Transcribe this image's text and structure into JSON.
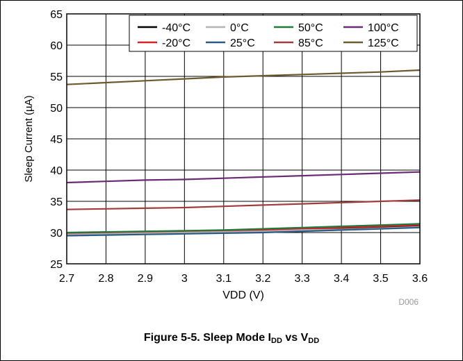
{
  "caption": {
    "prefix": "Figure 5-5. Sleep Mode I",
    "sub1": "DD",
    "middle": " vs V",
    "sub2": "DD"
  },
  "chart_data": {
    "type": "line",
    "xlabel": "VDD (V)",
    "ylabel": "Sleep Current (µA)",
    "xlim": [
      2.7,
      3.6
    ],
    "ylim": [
      25,
      65
    ],
    "xticks": [
      "2.7",
      "2.8",
      "2.9",
      "3",
      "3.1",
      "3.2",
      "3.3",
      "3.4",
      "3.5",
      "3.6"
    ],
    "yticks": [
      "25",
      "30",
      "35",
      "40",
      "45",
      "50",
      "55",
      "60",
      "65"
    ],
    "grid": true,
    "legend_position": "top-right",
    "watermark": "D006",
    "x": [
      2.7,
      2.8,
      2.9,
      3.0,
      3.1,
      3.2,
      3.3,
      3.4,
      3.5,
      3.6
    ],
    "series": [
      {
        "name": "-40°C",
        "color": "#000000",
        "values": [
          29.8,
          29.9,
          30.0,
          30.1,
          30.2,
          30.4,
          30.5,
          30.7,
          30.9,
          31.1
        ]
      },
      {
        "name": "-20°C",
        "color": "#d42027",
        "values": [
          29.8,
          29.9,
          30.0,
          30.1,
          30.2,
          30.4,
          30.6,
          30.8,
          31.0,
          31.2
        ]
      },
      {
        "name": "0°C",
        "color": "#b3b3b3",
        "values": [
          29.7,
          29.8,
          29.9,
          30.0,
          30.1,
          30.2,
          30.4,
          30.5,
          30.7,
          30.9
        ]
      },
      {
        "name": "25°C",
        "color": "#2a5b84",
        "values": [
          29.5,
          29.6,
          29.7,
          29.8,
          29.9,
          30.0,
          30.2,
          30.4,
          30.6,
          30.8
        ]
      },
      {
        "name": "50°C",
        "color": "#1f7a3c",
        "values": [
          30.0,
          30.1,
          30.2,
          30.3,
          30.4,
          30.6,
          30.8,
          31.0,
          31.2,
          31.4
        ]
      },
      {
        "name": "85°C",
        "color": "#a23b3b",
        "values": [
          33.7,
          33.8,
          33.9,
          34.0,
          34.2,
          34.4,
          34.6,
          34.8,
          35.0,
          35.2
        ]
      },
      {
        "name": "100°C",
        "color": "#6b2a74",
        "values": [
          38.0,
          38.2,
          38.4,
          38.5,
          38.7,
          38.9,
          39.1,
          39.3,
          39.5,
          39.7
        ]
      },
      {
        "name": "125°C",
        "color": "#6b5a2e",
        "values": [
          53.7,
          54.0,
          54.3,
          54.6,
          54.9,
          55.1,
          55.3,
          55.5,
          55.7,
          56.0
        ]
      }
    ]
  }
}
